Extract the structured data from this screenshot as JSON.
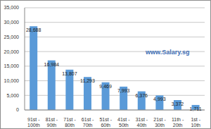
{
  "chart_data": {
    "type": "bar",
    "categories": [
      "91st - 100th",
      "81st - 90th",
      "71st - 80th",
      "61st - 70th",
      "51st - 60th",
      "41st - 50th",
      "31st - 40th",
      "21st - 30th",
      "11th - 20th",
      "1st - 10th"
    ],
    "values": [
      28688,
      16984,
      13807,
      11293,
      9469,
      7993,
      6376,
      4993,
      3372,
      1711
    ],
    "value_labels": [
      "28,688",
      "16,984",
      "13,807",
      "11,293",
      "9,469",
      "7,993",
      "6,376",
      "4,993",
      "3,372",
      "1,711"
    ],
    "data_labels": true,
    "color": "#5a9ad8",
    "ylim": [
      0,
      35000
    ],
    "yticks": [
      0,
      {
        "value": 5000,
        "label": "5,000"
      },
      {
        "value": 10000,
        "label": "10,000"
      },
      {
        "value": 15000,
        "label": "15,000"
      },
      {
        "value": 20000,
        "label": "20,000"
      },
      {
        "value": 25000,
        "label": "25,000"
      },
      {
        "value": 30000,
        "label": "30,000"
      },
      {
        "value": 35000,
        "label": "35,000"
      }
    ],
    "grid": true,
    "annotations": [
      "www.Salary.sg"
    ]
  }
}
